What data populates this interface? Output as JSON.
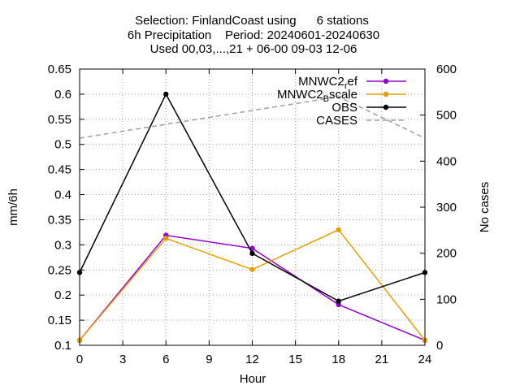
{
  "chart_data": {
    "type": "line",
    "title_lines": [
      "Selection: FinlandCoast using      6 stations",
      "6h Precipitation    Period: 20240601-20240630",
      "Used 00,03,...,21 + 06-00 09-03 12-06"
    ],
    "xlabel": "Hour",
    "ylabel": "mm/6h",
    "y2label": "No cases",
    "xlim": [
      0,
      24
    ],
    "ylim": [
      0.1,
      0.65
    ],
    "y2lim": [
      0,
      600
    ],
    "x_ticks": [
      "0",
      "3",
      "6",
      "9",
      "12",
      "15",
      "18",
      "21",
      "24"
    ],
    "y_ticks": [
      "0.1",
      "0.15",
      "0.2",
      "0.25",
      "0.3",
      "0.35",
      "0.4",
      "0.45",
      "0.5",
      "0.55",
      "0.6",
      "0.65"
    ],
    "y2_ticks": [
      "0",
      "100",
      "200",
      "300",
      "400",
      "500",
      "600"
    ],
    "grid": true,
    "legend_position": "top-right",
    "x": [
      0,
      6,
      12,
      18,
      24
    ],
    "series": [
      {
        "name": "MNWC2_ref",
        "legend_main": "MNWC2",
        "legend_sub": "r",
        "legend_rest": "ef",
        "color": "#9400d3",
        "axis": "y",
        "style": "solid",
        "values": [
          0.11,
          0.319,
          0.293,
          0.181,
          0.11
        ]
      },
      {
        "name": "MNWC2_Bscale",
        "legend_main": "MNWC2",
        "legend_sub": "B",
        "legend_rest": "scale",
        "color": "#e69f00",
        "axis": "y",
        "style": "solid",
        "values": [
          0.11,
          0.313,
          0.251,
          0.33,
          0.11
        ]
      },
      {
        "name": "OBS",
        "legend_main": "OBS",
        "legend_sub": "",
        "legend_rest": "",
        "color": "#000000",
        "axis": "y",
        "style": "solid",
        "values": [
          0.245,
          0.6,
          0.283,
          0.188,
          0.245
        ]
      },
      {
        "name": "CASES",
        "legend_main": "CASES",
        "legend_sub": "",
        "legend_rest": "",
        "color": "#a0a0a0",
        "axis": "y2",
        "style": "dashed",
        "values": [
          450,
          480,
          510,
          540,
          450
        ]
      }
    ]
  }
}
